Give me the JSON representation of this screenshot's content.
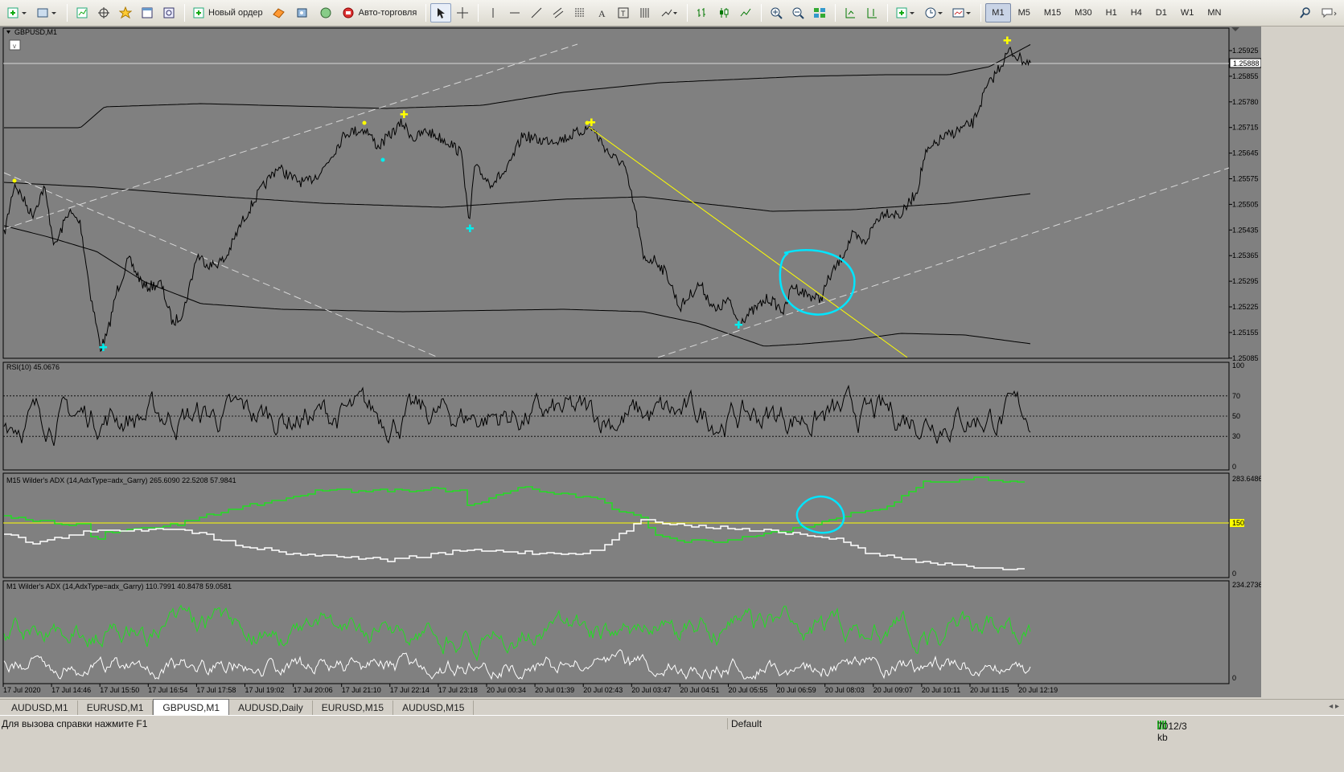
{
  "toolbar": {
    "new_order": "Новый ордер",
    "auto_trading": "Авто-торговля",
    "timeframes": [
      "M1",
      "M5",
      "M15",
      "M30",
      "H1",
      "H4",
      "D1",
      "W1",
      "MN"
    ],
    "active_timeframe": "M1"
  },
  "chart": {
    "symbol_label": "GBPUSD,M1",
    "price_labels": [
      "1.25925",
      "1.25855",
      "1.25780",
      "1.25715",
      "1.25645",
      "1.25575",
      "1.25505",
      "1.25435",
      "1.25365",
      "1.25295",
      "1.25225",
      "1.25155",
      "1.25085"
    ],
    "current_price": "1.25888",
    "time_labels": [
      "17 Jul 2020",
      "17 Jul 14:46",
      "17 Jul 15:50",
      "17 Jul 16:54",
      "17 Jul 17:58",
      "17 Jul 19:02",
      "17 Jul 20:06",
      "17 Jul 21:10",
      "17 Jul 22:14",
      "17 Jul 23:18",
      "20 Jul 00:34",
      "20 Jul 01:39",
      "20 Jul 02:43",
      "20 Jul 03:47",
      "20 Jul 04:51",
      "20 Jul 05:55",
      "20 Jul 06:59",
      "20 Jul 08:03",
      "20 Jul 09:07",
      "20 Jul 10:11",
      "20 Jul 11:15",
      "20 Jul 12:19"
    ]
  },
  "rsi": {
    "label": "RSI(10) 45.0676",
    "levels": [
      "100",
      "70",
      "50",
      "30",
      "0"
    ]
  },
  "adx_m15": {
    "label": "M15 Wilder's  ADX (14,AdxType=adx_Garry) 265.6090 22.5208 57.9841",
    "max": "283.6486",
    "level": "150",
    "min": "0"
  },
  "adx_m1": {
    "label": "M1 Wilder's  ADX (14,AdxType=adx_Garry) 110.7991 40.8478 59.0581",
    "max": "234.2736",
    "min": "0"
  },
  "tabs": [
    "AUDUSD,M1",
    "EURUSD,M1",
    "GBPUSD,M1",
    "AUDUSD,Daily",
    "EURUSD,M15",
    "AUDUSD,M15"
  ],
  "active_tab": "GBPUSD,M1",
  "status": {
    "help": "Для вызова справки нажмите F1",
    "profile": "Default",
    "traffic": "7012/3 kb"
  },
  "colors": {
    "chart_bg": "#808080",
    "price_line": "#000000",
    "trendline": "#ffff00",
    "channel": "#d8d8d8",
    "highlight": "#00e5ff",
    "adx_green": "#22dd22",
    "adx_white": "#ffffff"
  }
}
